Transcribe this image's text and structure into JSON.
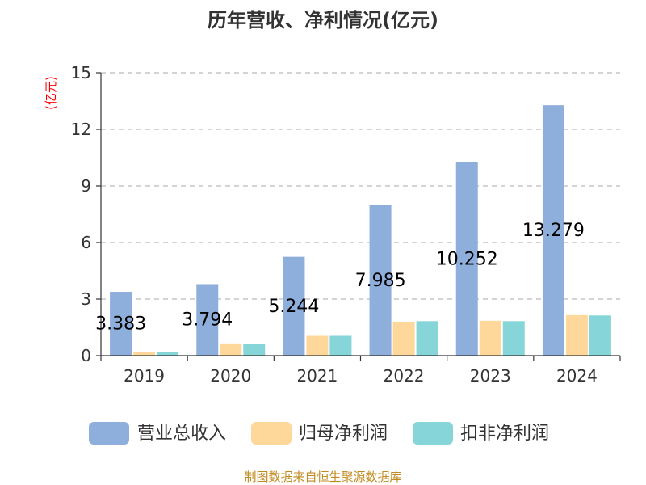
{
  "chart_data": {
    "type": "bar",
    "title": "历年营收、净利情况(亿元)",
    "ylabel": "(亿元)",
    "xlabel": "",
    "categories": [
      "2019",
      "2020",
      "2021",
      "2022",
      "2023",
      "2024"
    ],
    "series": [
      {
        "name": "营业总收入",
        "color": "#8eaedb",
        "values": [
          3.383,
          3.794,
          5.244,
          7.985,
          10.252,
          13.279
        ],
        "labels": [
          "3.383",
          "3.794",
          "5.244",
          "7.985",
          "10.252",
          "13.279"
        ]
      },
      {
        "name": "归母净利润",
        "color": "#fdd89a",
        "values": [
          0.2,
          0.65,
          1.05,
          1.8,
          1.85,
          2.15
        ]
      },
      {
        "name": "扣非净利润",
        "color": "#86d5d8",
        "values": [
          0.18,
          0.62,
          1.05,
          1.83,
          1.83,
          2.13
        ]
      }
    ],
    "ylim": [
      0,
      15
    ],
    "yticks": [
      "0",
      "3",
      "6",
      "9",
      "12",
      "15"
    ],
    "grid": true,
    "legend_position": "bottom"
  },
  "footer": {
    "source": "制图数据来自恒生聚源数据库"
  },
  "colors": {
    "title": "#333333",
    "ylabel": "#ff0000",
    "axis": "#333333",
    "grid": "#bbbbbb",
    "footer": "#c28a1f",
    "label": "#000000"
  }
}
